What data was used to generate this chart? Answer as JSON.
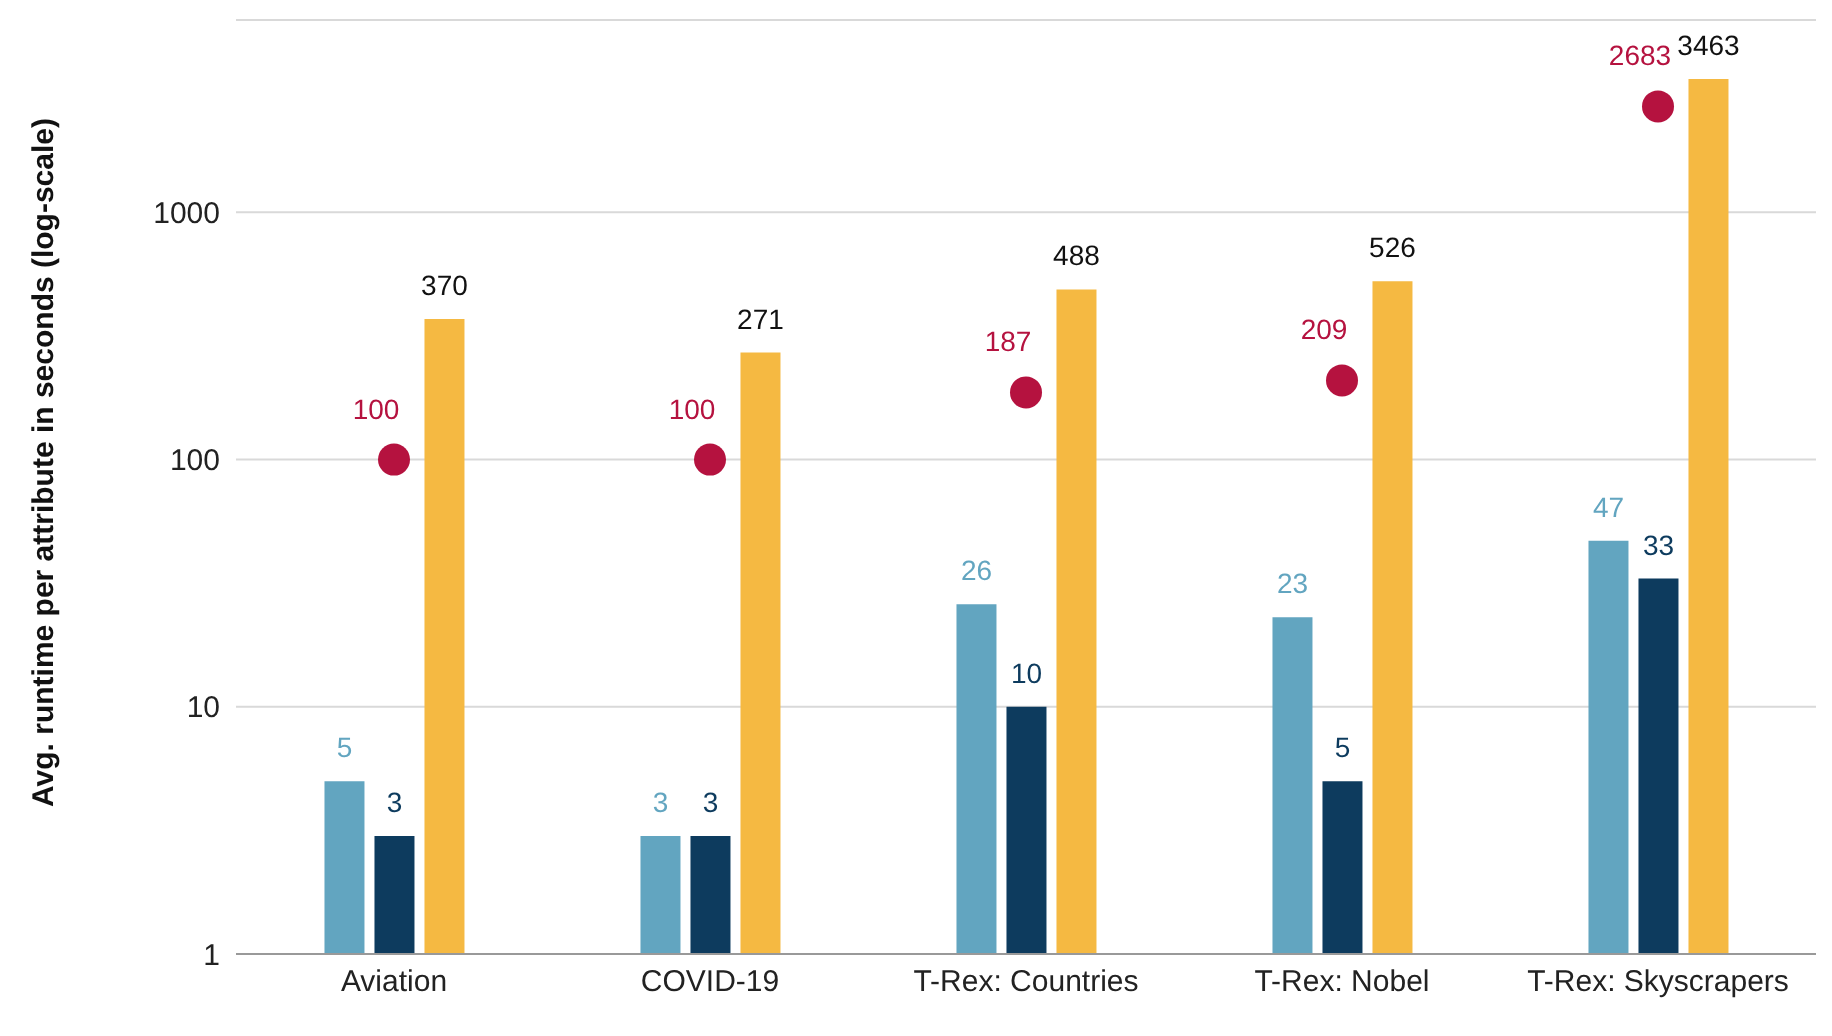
{
  "chart_data": {
    "type": "bar",
    "ylabel": "Avg. runtime per attribute in seconds (log-scale)",
    "categories": [
      "Aviation",
      "COVID-19",
      "T-Rex: Countries",
      "T-Rex: Nobel",
      "T-Rex: Skyscrapers"
    ],
    "series": [
      {
        "color": "#62a5c0",
        "values": [
          5,
          3,
          26,
          23,
          47
        ]
      },
      {
        "color": "#0d3b5e",
        "values": [
          3,
          3,
          10,
          5,
          33
        ]
      },
      {
        "color": "#f5b942",
        "values": [
          370,
          271,
          488,
          526,
          3463
        ]
      },
      {
        "type": "scatter",
        "color": "#b5123f",
        "x": [
          "Aviation",
          "COVID-19",
          "T-Rex: Countries",
          "T-Rex: Nobel",
          "T-Rex: Skyscrapers"
        ],
        "values": [
          100,
          100,
          187,
          209,
          2683
        ]
      }
    ],
    "log": "y",
    "ylim": [
      1,
      6000
    ],
    "yticks": [
      1,
      10,
      100,
      1000
    ],
    "grid": "y",
    "legend": false,
    "data_labels": true,
    "marker": "circle"
  }
}
